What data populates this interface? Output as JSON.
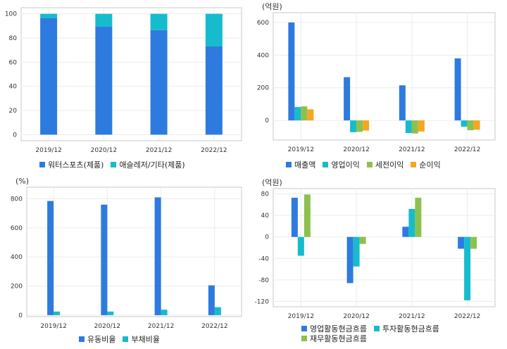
{
  "chart_data": [
    {
      "type": "bar",
      "stacked": true,
      "unit": "",
      "categories": [
        "2019/12",
        "2020/12",
        "2021/12",
        "2022/12"
      ],
      "series": [
        {
          "name": "워터스포츠(제품)",
          "color": "#2e7be0",
          "values": [
            96.5,
            89.5,
            86.5,
            73
          ]
        },
        {
          "name": "애슬레저/기타(제품)",
          "color": "#16bccc",
          "values": [
            3.5,
            10.5,
            13.5,
            27
          ]
        }
      ],
      "ylim": [
        -5,
        105
      ],
      "yticks": [
        0,
        20,
        40,
        60,
        80,
        100
      ],
      "grid": true,
      "legend": "bottom"
    },
    {
      "type": "bar",
      "unit": "(억원)",
      "categories": [
        "2019/12",
        "2020/12",
        "2021/12",
        "2022/12"
      ],
      "series": [
        {
          "name": "매출액",
          "color": "#2e7be0",
          "values": [
            600,
            265,
            215,
            380
          ]
        },
        {
          "name": "영업이익",
          "color": "#16bccc",
          "values": [
            82,
            -72,
            -77,
            -38
          ]
        },
        {
          "name": "세전이익",
          "color": "#8dc14e",
          "values": [
            86,
            -70,
            -80,
            -60
          ]
        },
        {
          "name": "순이익",
          "color": "#f5a623",
          "values": [
            68,
            -62,
            -68,
            -57
          ]
        }
      ],
      "ylim": [
        -120,
        660
      ],
      "yticks": [
        0,
        200,
        400,
        600
      ],
      "grid": true,
      "legend": "bottom"
    },
    {
      "type": "bar",
      "unit": "(%)",
      "categories": [
        "2019/12",
        "2020/12",
        "2021/12",
        "2022/12"
      ],
      "series": [
        {
          "name": "유동비율",
          "color": "#2e7be0",
          "values": [
            785,
            760,
            810,
            205
          ]
        },
        {
          "name": "부채비율",
          "color": "#16bccc",
          "values": [
            25,
            25,
            38,
            55
          ]
        }
      ],
      "ylim": [
        -10,
        880
      ],
      "yticks": [
        0,
        200,
        400,
        600,
        800
      ],
      "grid": true,
      "legend": "bottom"
    },
    {
      "type": "bar",
      "unit": "(억원)",
      "categories": [
        "2019/12",
        "2020/12",
        "2021/12",
        "2022/12"
      ],
      "series": [
        {
          "name": "영업활동현금흐름",
          "color": "#2e7be0",
          "values": [
            73,
            -86,
            19,
            -22
          ]
        },
        {
          "name": "투자활동현금흐름",
          "color": "#16bccc",
          "values": [
            -35,
            -55,
            52,
            -118
          ]
        },
        {
          "name": "재무활동현금흐름",
          "color": "#8dc14e",
          "values": [
            79,
            -13,
            73,
            -22
          ]
        }
      ],
      "ylim": [
        -130,
        90
      ],
      "yticks": [
        -120,
        -80,
        -40,
        0,
        40,
        80
      ],
      "grid": true,
      "legend": "bottom"
    }
  ]
}
